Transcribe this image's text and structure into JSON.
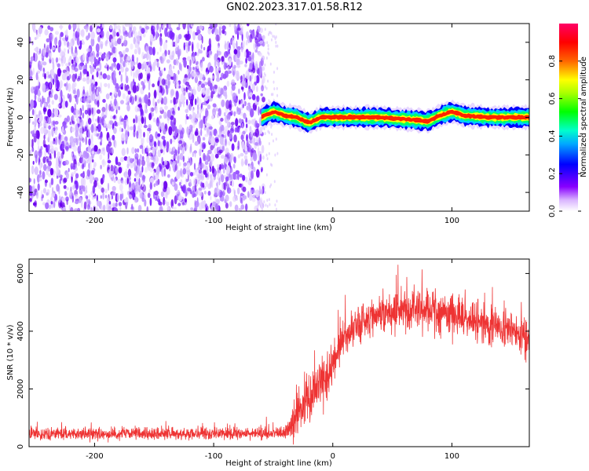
{
  "title": "GN02.2023.317.01.58.R12",
  "colors": {
    "snr_line": "#ee3333",
    "frame": "#000000"
  },
  "chart_data": [
    {
      "type": "heatmap",
      "name": "spectrogram",
      "xlabel": "Height of straight line (km)",
      "ylabel": "Frequency (Hz)",
      "xlim": [
        -255,
        165
      ],
      "ylim": [
        -50,
        50
      ],
      "xticks": [
        -200,
        -100,
        0,
        100
      ],
      "xtick_labels": [
        "-200",
        "-100",
        "0",
        "100"
      ],
      "yticks": [
        -40,
        -20,
        0,
        20,
        40
      ],
      "ytick_labels": [
        "-40",
        "-20",
        "0",
        "20",
        "40"
      ],
      "colorbar": {
        "label": "Normalized spectral amplitude",
        "range": [
          0,
          1
        ],
        "ticks": [
          0.0,
          0.2,
          0.4,
          0.6,
          0.8
        ],
        "tick_labels": [
          "0.0",
          "0.2",
          "0.4",
          "0.6",
          "0.8"
        ],
        "colormap": "rainbow (white-purple-blue-cyan-green-yellow-red-magenta)"
      },
      "noise_region_x": [
        -255,
        -58
      ],
      "signal_track": {
        "x": [
          -60,
          -50,
          -40,
          -30,
          -20,
          -10,
          0,
          20,
          40,
          60,
          80,
          90,
          100,
          110,
          130,
          150,
          165
        ],
        "freq": [
          0,
          3,
          1,
          0,
          -3,
          0,
          0,
          0,
          0,
          -1,
          -2,
          1,
          3,
          1,
          0,
          0,
          0
        ]
      }
    },
    {
      "type": "line",
      "name": "snr",
      "xlabel": "Height of straight line (km)",
      "ylabel": "SNR (10 * v/v)",
      "xlim": [
        -255,
        165
      ],
      "ylim": [
        0,
        6500
      ],
      "xticks": [
        -200,
        -100,
        0,
        100
      ],
      "xtick_labels": [
        "-200",
        "-100",
        "0",
        "100"
      ],
      "yticks": [
        0,
        2000,
        4000,
        6000
      ],
      "ytick_labels": [
        "0",
        "2000",
        "4000",
        "6000"
      ],
      "envelope": {
        "x": [
          -255,
          -200,
          -100,
          -42,
          -35,
          -25,
          -15,
          -5,
          5,
          15,
          30,
          50,
          70,
          90,
          110,
          130,
          150,
          165
        ],
        "mean": [
          450,
          450,
          450,
          450,
          700,
          1500,
          2000,
          2400,
          3400,
          4100,
          4500,
          4700,
          4800,
          4700,
          4500,
          4250,
          4000,
          3800
        ],
        "noise": [
          150,
          150,
          150,
          150,
          350,
          600,
          600,
          600,
          500,
          500,
          500,
          550,
          550,
          550,
          500,
          500,
          450,
          500
        ]
      }
    }
  ]
}
